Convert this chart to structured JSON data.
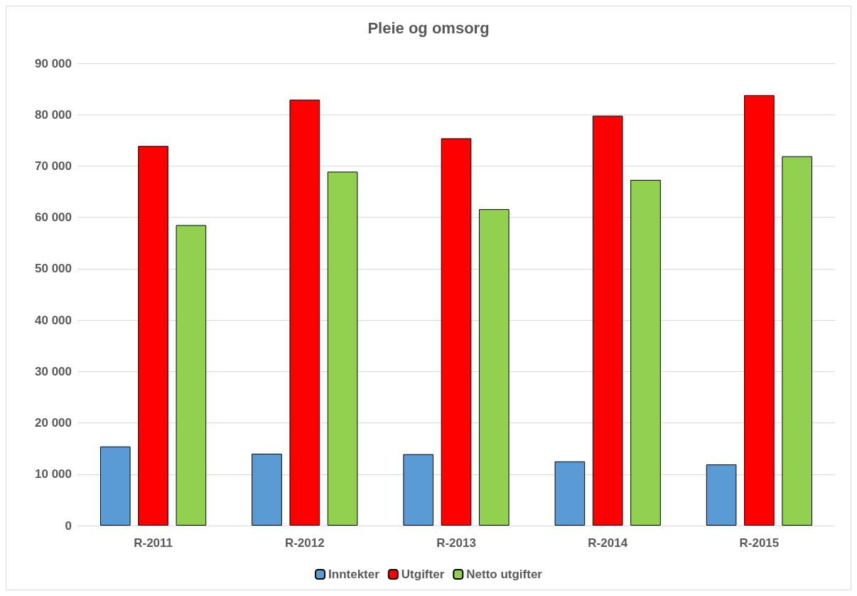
{
  "chart_data": {
    "type": "bar",
    "title": "Pleie og omsorg",
    "categories": [
      "R-2011",
      "R-2012",
      "R-2013",
      "R-2014",
      "R-2015"
    ],
    "series": [
      {
        "name": "Inntekter",
        "color": "#5b9bd5",
        "values": [
          15400,
          14000,
          13900,
          12500,
          11900
        ]
      },
      {
        "name": "Utgifter",
        "color": "#ff0000",
        "values": [
          73900,
          82900,
          75400,
          79800,
          83800
        ]
      },
      {
        "name": "Netto utgifter",
        "color": "#92d050",
        "values": [
          58500,
          68900,
          61600,
          67300,
          71900
        ]
      }
    ],
    "ylim": [
      0,
      90000
    ],
    "yticks": [
      {
        "value": 0,
        "label": "0"
      },
      {
        "value": 10000,
        "label": "10 000"
      },
      {
        "value": 20000,
        "label": "20 000"
      },
      {
        "value": 30000,
        "label": "30 000"
      },
      {
        "value": 40000,
        "label": "40 000"
      },
      {
        "value": 50000,
        "label": "50 000"
      },
      {
        "value": 60000,
        "label": "60 000"
      },
      {
        "value": 70000,
        "label": "70 000"
      },
      {
        "value": 80000,
        "label": "80 000"
      },
      {
        "value": 90000,
        "label": "90 000"
      }
    ],
    "grid": "y",
    "legend": "bottom"
  }
}
